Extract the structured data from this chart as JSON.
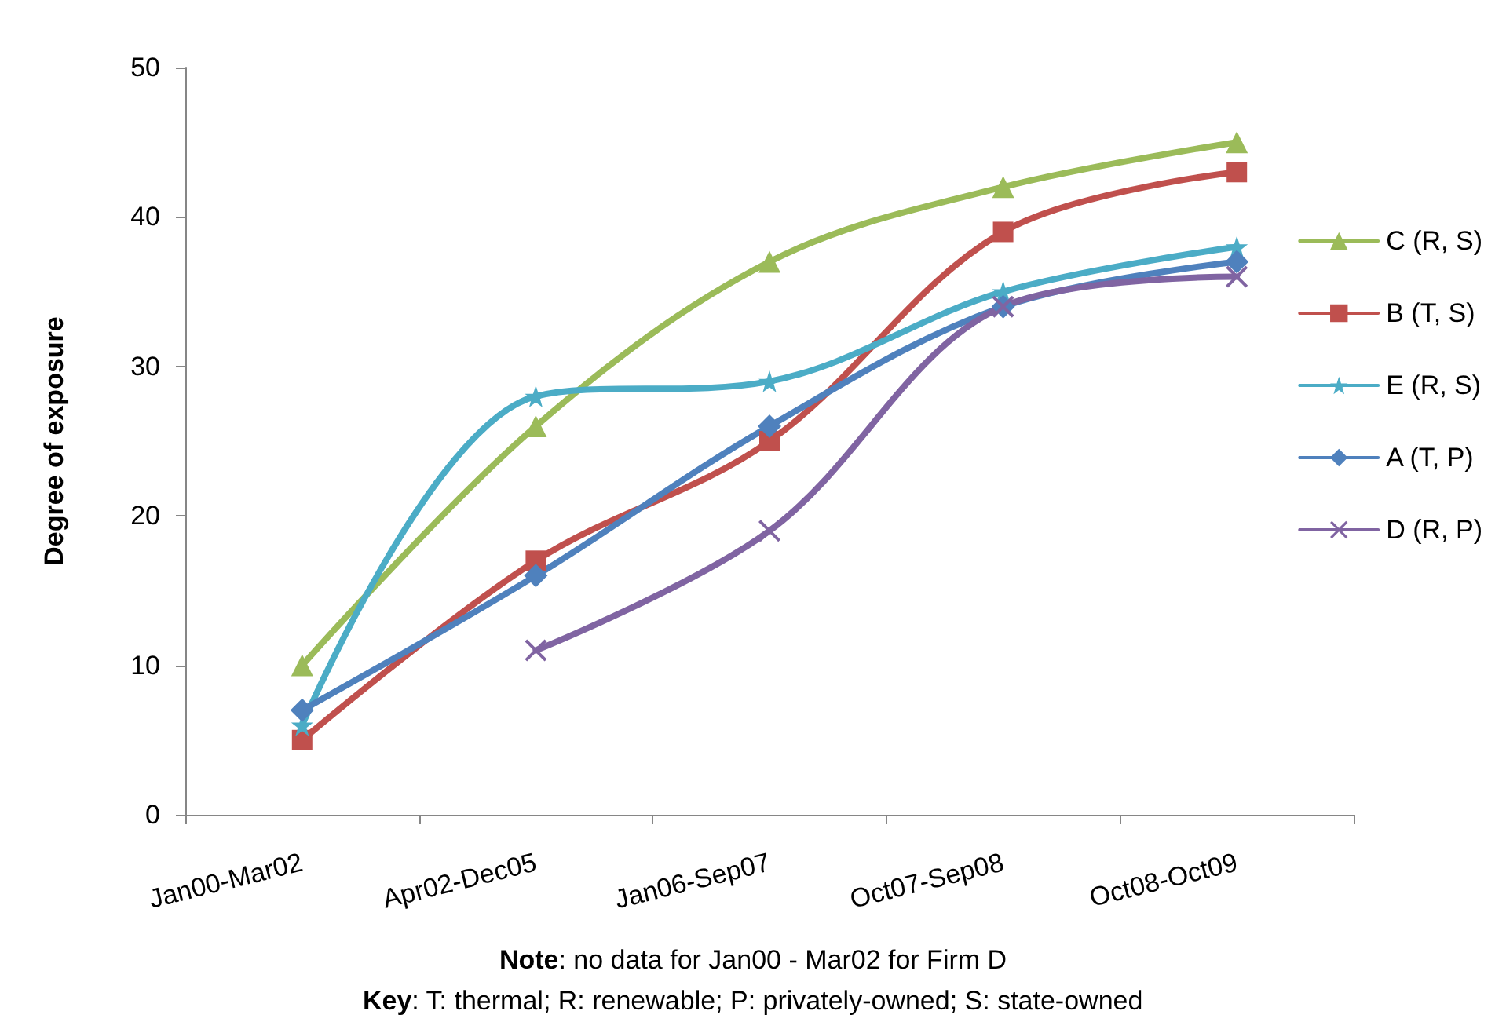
{
  "chart_data": {
    "type": "line",
    "ylabel": "Degree of exposure",
    "categories": [
      "Jan00-Mar02",
      "Apr02-Dec05",
      "Jan06-Sep07",
      "Oct07-Sep08",
      "Oct08-Oct09"
    ],
    "series": [
      {
        "name": "C (R, S)",
        "color": "#9bbb59",
        "marker": "triangle",
        "values": [
          10,
          26,
          37,
          42,
          45
        ]
      },
      {
        "name": "B (T, S)",
        "color": "#c0504d",
        "marker": "square",
        "values": [
          5,
          17,
          25,
          39,
          43
        ]
      },
      {
        "name": "E (R, S)",
        "color": "#4bacc6",
        "marker": "star",
        "values": [
          6,
          28,
          29,
          35,
          38
        ]
      },
      {
        "name": "A (T, P)",
        "color": "#4f81bd",
        "marker": "diamond",
        "values": [
          7,
          16,
          26,
          34,
          37
        ]
      },
      {
        "name": "D (R, P)",
        "color": "#8064a2",
        "marker": "cross",
        "values": [
          null,
          11,
          19,
          34,
          36
        ]
      }
    ],
    "ylim": [
      0,
      50
    ],
    "yticks": [
      0,
      10,
      20,
      30,
      40,
      50
    ],
    "grid": false,
    "legend": "right",
    "line_style": "solid",
    "annotations": [
      "Note: no data for Jan00 - Mar02 for Firm D",
      "Key: T: thermal; R: renewable; P: privately-owned; S: state-owned"
    ]
  }
}
